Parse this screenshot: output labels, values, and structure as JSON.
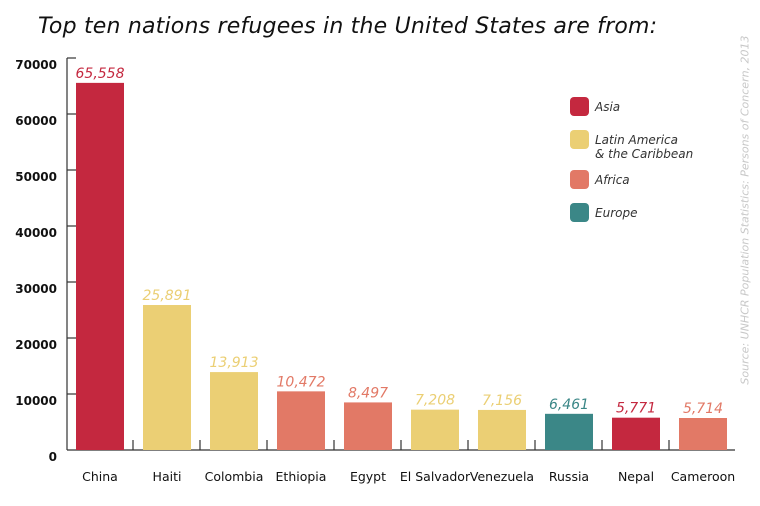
{
  "chart_data": {
    "type": "bar",
    "title": "Top ten nations refugees in the United States are from:",
    "categories": [
      "China",
      "Haiti",
      "Colombia",
      "Ethiopia",
      "Egypt",
      "El Salvador",
      "Venezuela",
      "Russia",
      "Nepal",
      "Cameroon"
    ],
    "values": [
      65558,
      25891,
      13913,
      10472,
      8497,
      7208,
      7156,
      6461,
      5771,
      5714
    ],
    "value_labels": [
      "65,558",
      "25,891",
      "13,913",
      "10,472",
      "8,497",
      "7,208",
      "7,156",
      "6,461",
      "5,771",
      "5,714"
    ],
    "regions": [
      "Asia",
      "Latin America & the Caribbean",
      "Latin America & the Caribbean",
      "Africa",
      "Africa",
      "Latin America & the Caribbean",
      "Latin America & the Caribbean",
      "Europe",
      "Asia",
      "Africa"
    ],
    "ylim": [
      0,
      70000
    ],
    "yticks": [
      "0",
      "10000",
      "20000",
      "30000",
      "40000",
      "50000",
      "60000",
      "70000"
    ],
    "grid": false,
    "legend_position": "top-right",
    "legend": [
      {
        "name": "Asia",
        "lines": [
          "Asia"
        ],
        "color": "#c4283f"
      },
      {
        "name": "Latin America & the Caribbean",
        "lines": [
          "Latin America",
          "& the Caribbean"
        ],
        "color": "#ebcf74"
      },
      {
        "name": "Africa",
        "lines": [
          "Africa"
        ],
        "color": "#e27966"
      },
      {
        "name": "Europe",
        "lines": [
          "Europe"
        ],
        "color": "#3b8787"
      }
    ],
    "source": "Source: UNHCR Population Statistics: Persons of Concern, 2013"
  }
}
